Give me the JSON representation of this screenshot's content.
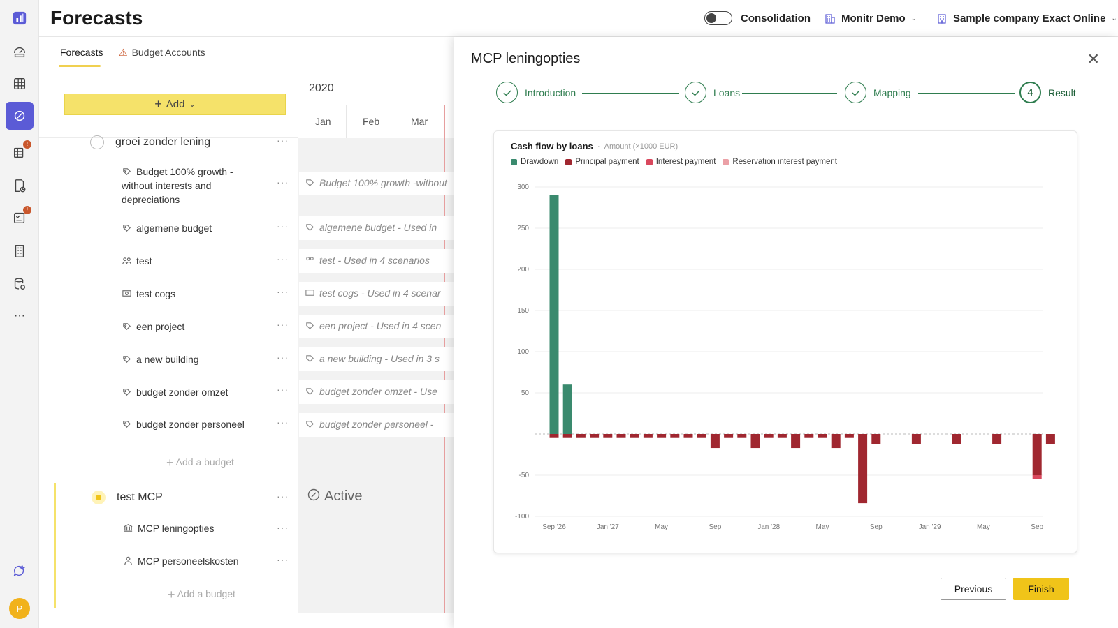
{
  "header": {
    "title": "Forecasts",
    "consolidation_label": "Consolidation",
    "org_name": "Monitr Demo",
    "company_name": "Sample company Exact Online"
  },
  "rail": {
    "badge1": "!",
    "badge2": "!",
    "avatar": "P",
    "more": "···"
  },
  "tabs": [
    {
      "label": "Forecasts",
      "selected": true
    },
    {
      "label": "Budget Accounts",
      "selected": false
    }
  ],
  "list": {
    "add_label": "Add",
    "group1": "groei zonder lening",
    "items": [
      {
        "label": "Budget 100% growth - without interests and depreciations",
        "row": "Budget 100% growth -without"
      },
      {
        "label": "algemene budget",
        "row": "algemene budget - Used in"
      },
      {
        "label": "test",
        "row": "test - Used in 4 scenarios"
      },
      {
        "label": "test cogs",
        "row": "test cogs - Used in 4 scenar"
      },
      {
        "label": "een project",
        "row": "een project - Used in 4 scen"
      },
      {
        "label": "a new building",
        "row": "a new building - Used in 3 s"
      },
      {
        "label": "budget zonder omzet",
        "row": "budget zonder omzet - Use"
      },
      {
        "label": "budget zonder personeel",
        "row": "budget zonder personeel -"
      }
    ],
    "add_budget": "Add a budget",
    "group2": "test MCP",
    "group2_status": "Active",
    "items2": [
      {
        "label": "MCP leningopties"
      },
      {
        "label": "MCP personeelskosten"
      }
    ]
  },
  "grid": {
    "year": "2020",
    "months": [
      "Jan",
      "Feb",
      "Mar"
    ]
  },
  "panel": {
    "title": "MCP leningopties",
    "steps": [
      {
        "label": "Introduction",
        "state": "done"
      },
      {
        "label": "Loans",
        "state": "done"
      },
      {
        "label": "Mapping",
        "state": "done"
      },
      {
        "label": "Result",
        "state": "current",
        "number": "4"
      }
    ],
    "previous_label": "Previous",
    "finish_label": "Finish"
  },
  "colors": {
    "drawdown": "#3a8a6e",
    "principal": "#a02730",
    "interest": "#d9485d",
    "reservation": "#eba0a6",
    "accent_yellow": "#f0c419",
    "green": "#2f7d4f"
  },
  "chart_data": {
    "type": "bar",
    "title": "Cash flow by loans",
    "subtitle": "Amount (×1000 EUR)",
    "legend": [
      "Drawdown",
      "Principal payment",
      "Interest payment",
      "Reservation interest payment"
    ],
    "x_ticks": [
      "Sep '26",
      "Jan '27",
      "May",
      "Sep",
      "Jan '28",
      "May",
      "Sep",
      "Jan '29",
      "May",
      "Sep"
    ],
    "y_ticks": [
      300,
      250,
      200,
      150,
      100,
      50,
      -50,
      -100
    ],
    "ylim": [
      -100,
      300
    ],
    "categories": [
      "Sep '26",
      "Oct '26",
      "Nov '26",
      "Dec '26",
      "Jan '27",
      "Feb '27",
      "Mar '27",
      "Apr '27",
      "May '27",
      "Jun '27",
      "Jul '27",
      "Aug '27",
      "Sep '27",
      "Oct '27",
      "Nov '27",
      "Dec '27",
      "Jan '28",
      "Feb '28",
      "Mar '28",
      "Apr '28",
      "May '28",
      "Jun '28",
      "Jul '28",
      "Aug '28",
      "Sep '28",
      "Oct '28",
      "Nov '28",
      "Dec '28",
      "Jan '29",
      "Feb '29",
      "Mar '29",
      "Apr '29",
      "May '29",
      "Jun '29",
      "Jul '29",
      "Aug '29",
      "Sep '29",
      "Oct '29"
    ],
    "series": [
      {
        "name": "Drawdown",
        "values": [
          290,
          60,
          0,
          0,
          0,
          0,
          0,
          0,
          0,
          0,
          0,
          0,
          0,
          0,
          0,
          0,
          0,
          0,
          0,
          0,
          0,
          0,
          0,
          0,
          0,
          0,
          0,
          0,
          0,
          0,
          0,
          0,
          0,
          0,
          0,
          0,
          0,
          0
        ]
      },
      {
        "name": "Principal payment",
        "values": [
          -4,
          -4,
          -4,
          -4,
          -4,
          -4,
          -4,
          -4,
          -4,
          -4,
          -4,
          -4,
          -17,
          -4,
          -4,
          -17,
          -4,
          -4,
          -17,
          -4,
          -4,
          -17,
          -4,
          -84,
          -12,
          0,
          0,
          -12,
          0,
          0,
          -12,
          0,
          0,
          -12,
          0,
          0,
          -50,
          -12
        ]
      },
      {
        "name": "Interest payment",
        "values": [
          0,
          0,
          0,
          0,
          0,
          0,
          0,
          0,
          0,
          0,
          0,
          0,
          0,
          0,
          0,
          0,
          0,
          0,
          0,
          0,
          0,
          0,
          0,
          0,
          0,
          0,
          0,
          0,
          0,
          0,
          0,
          0,
          0,
          0,
          0,
          0,
          -5,
          0
        ]
      },
      {
        "name": "Reservation interest payment",
        "values": [
          0,
          0,
          0,
          0,
          0,
          0,
          0,
          0,
          0,
          0,
          0,
          0,
          0,
          0,
          0,
          0,
          0,
          0,
          0,
          0,
          0,
          0,
          0,
          0,
          0,
          0,
          0,
          0,
          0,
          0,
          0,
          0,
          0,
          0,
          0,
          0,
          0,
          0
        ]
      }
    ],
    "grid": true,
    "legend_position": "top-left"
  }
}
